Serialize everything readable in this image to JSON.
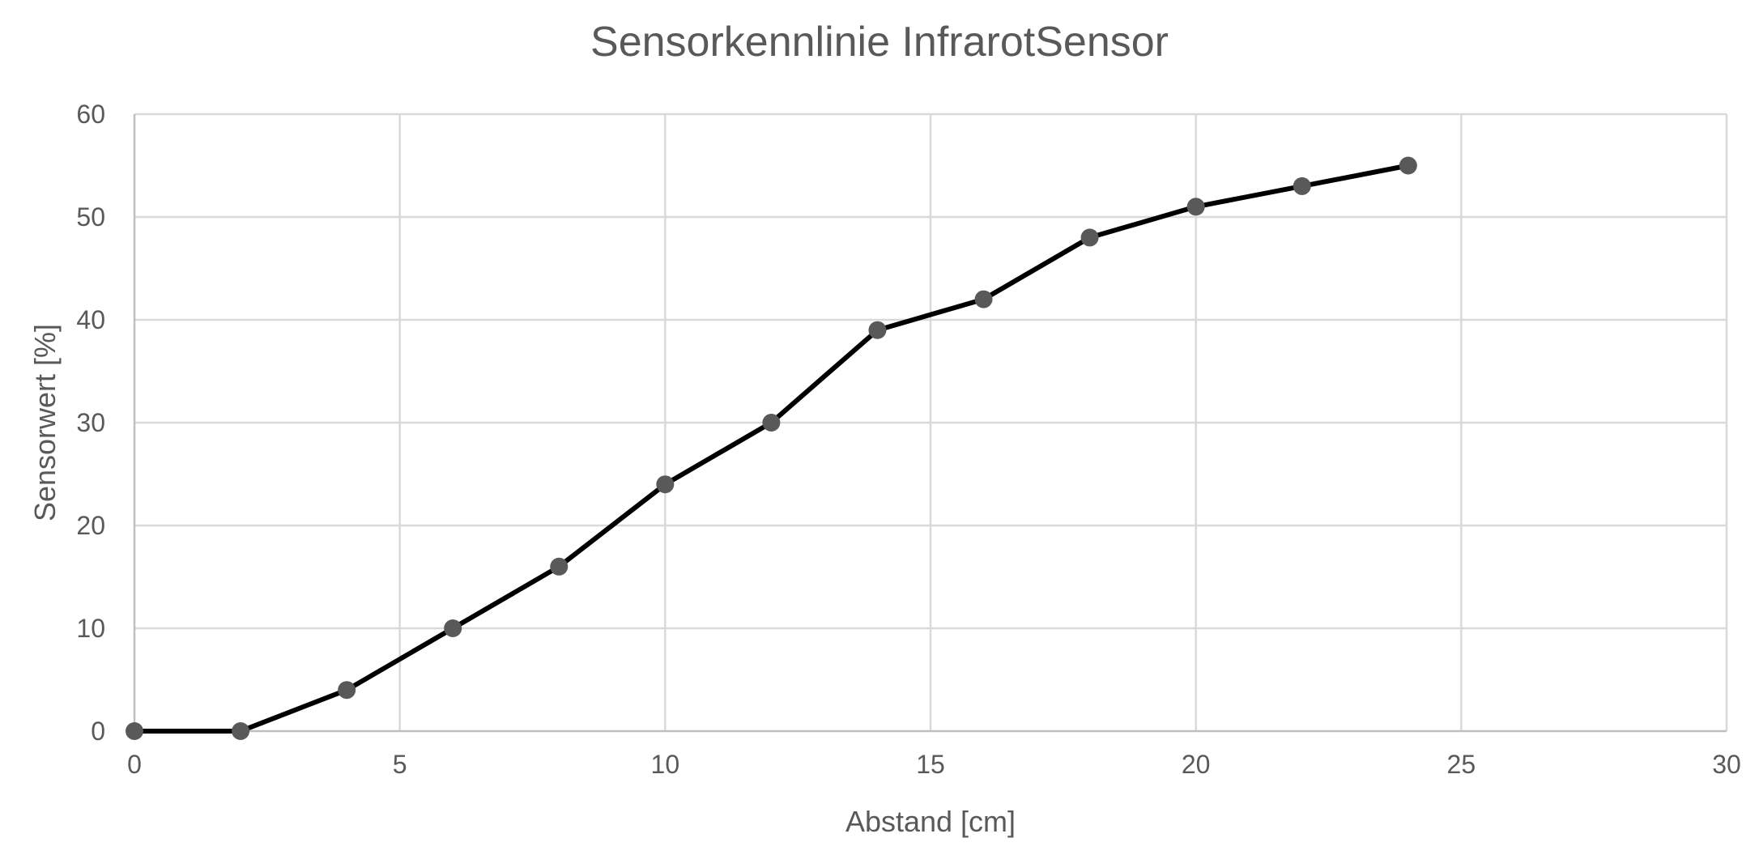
{
  "chart_data": {
    "type": "line",
    "title": "Sensorkennlinie InfrarotSensor",
    "xlabel": "Abstand [cm]",
    "ylabel": "Sensorwert [%]",
    "xlim": [
      0,
      30
    ],
    "ylim": [
      0,
      60
    ],
    "x_ticks": [
      0,
      5,
      10,
      15,
      20,
      25,
      30
    ],
    "y_ticks": [
      0,
      10,
      20,
      30,
      40,
      50,
      60
    ],
    "grid": true,
    "legend": "none",
    "series": [
      {
        "x": [
          0,
          2,
          4,
          6,
          8,
          10,
          12,
          14,
          16,
          18,
          20,
          22,
          24
        ],
        "values": [
          0,
          0,
          4,
          10,
          16,
          24,
          30,
          39,
          42,
          48,
          51,
          53,
          55
        ],
        "line_color": "#000000",
        "marker_color": "#595959"
      }
    ]
  }
}
